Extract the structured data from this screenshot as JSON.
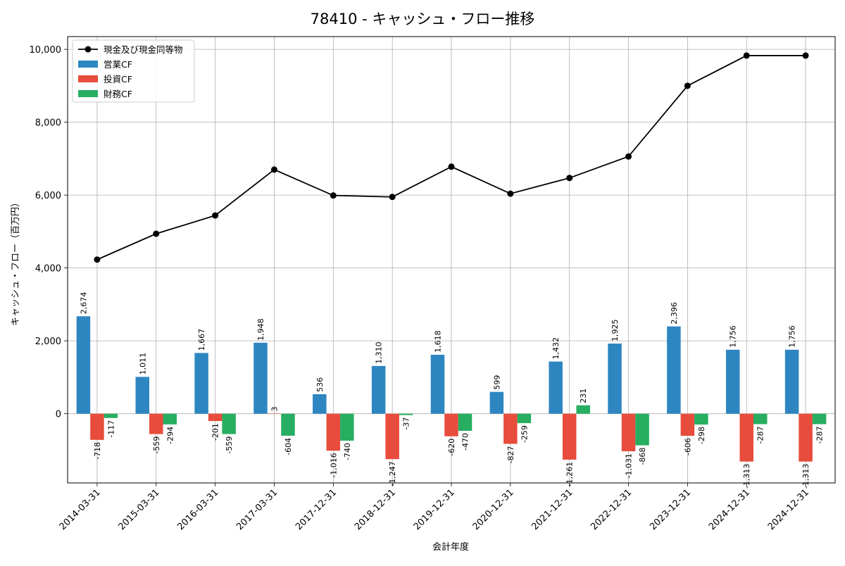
{
  "chart_data": {
    "type": "bar",
    "title": "78410 - キャッシュ・フロー推移",
    "xlabel": "会計年度",
    "ylabel": "キャッシュ・フロー（百万円）",
    "ylim": [
      -1900,
      10350
    ],
    "yticks": [
      0,
      2000,
      4000,
      6000,
      8000,
      10000
    ],
    "ytick_labels": [
      "0",
      "2,000",
      "4,000",
      "6,000",
      "8,000",
      "10,000"
    ],
    "grid": true,
    "legend_position": "top-left",
    "categories": [
      "2014-03-31",
      "2015-03-31",
      "2016-03-31",
      "2017-03-31",
      "2017-12-31",
      "2018-12-31",
      "2019-12-31",
      "2020-12-31",
      "2021-12-31",
      "2022-12-31",
      "2023-12-31",
      "2024-12-31",
      "2024-12-31"
    ],
    "series": [
      {
        "name": "営業CF",
        "kind": "bar",
        "color": "#2e86c1",
        "values": [
          2674,
          1011,
          1667,
          1948,
          536,
          1310,
          1618,
          599,
          1432,
          1925,
          2396,
          1756,
          1756
        ],
        "labels": [
          "2,674",
          "1,011",
          "1,667",
          "1,948",
          "536",
          "1,310",
          "1,618",
          "599",
          "1,432",
          "1,925",
          "2,396",
          "1,756",
          "1,756"
        ]
      },
      {
        "name": "投資CF",
        "kind": "bar",
        "color": "#e74c3c",
        "values": [
          -718,
          -559,
          -201,
          3,
          -1016,
          -1247,
          -620,
          -827,
          -1261,
          -1031,
          -606,
          -1313,
          -1313
        ],
        "labels": [
          "-718",
          "-559",
          "-201",
          "3",
          "-1,016",
          "-1,247",
          "-620",
          "-827",
          "-1,261",
          "-1,031",
          "-606",
          "-1,313",
          "-1,313"
        ]
      },
      {
        "name": "財務CF",
        "kind": "bar",
        "color": "#27ae60",
        "values": [
          -117,
          -294,
          -559,
          -604,
          -740,
          -37,
          -470,
          -259,
          231,
          -868,
          -298,
          -287,
          -287
        ],
        "labels": [
          "-117",
          "-294",
          "-559",
          "-604",
          "-740",
          "-37",
          "-470",
          "-259",
          "231",
          "-868",
          "-298",
          "-287",
          "-287"
        ]
      },
      {
        "name": "現金及び現金同等物",
        "kind": "line",
        "color": "#000000",
        "values": [
          4230,
          4940,
          5440,
          6700,
          5990,
          5950,
          6780,
          6040,
          6470,
          7060,
          9000,
          9830,
          9830
        ]
      }
    ]
  }
}
